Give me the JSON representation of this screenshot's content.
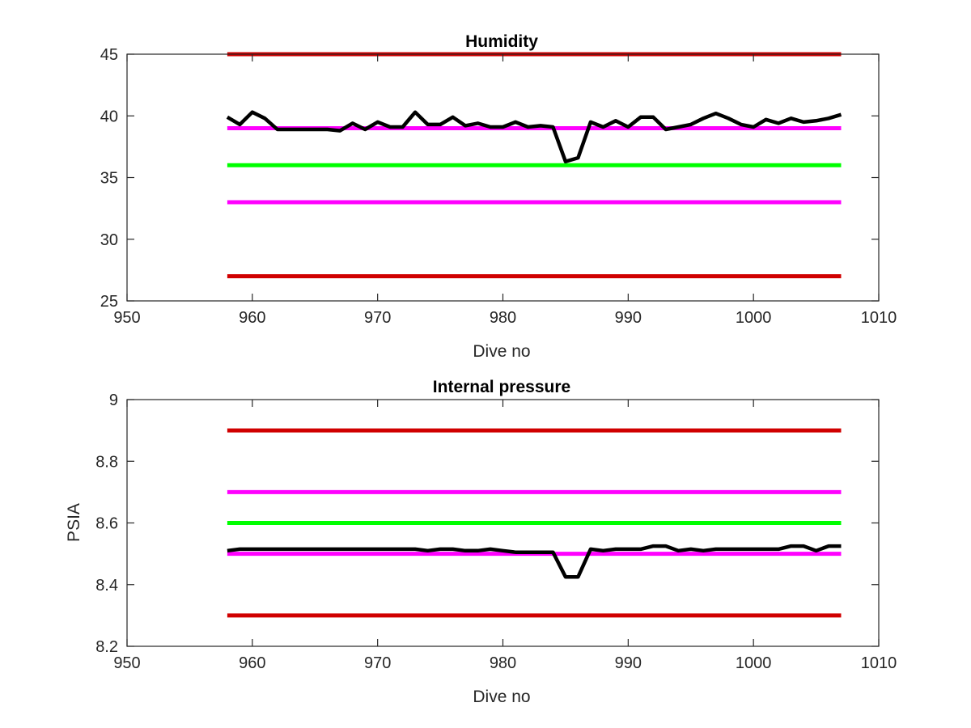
{
  "colors": {
    "limit_red": "#d00000",
    "limit_magenta": "#ff00ff",
    "target_green": "#00ff00",
    "data_black": "#000000",
    "axis": "#262626"
  },
  "chart_data": [
    {
      "type": "line",
      "title": "Humidity",
      "xlabel": "Dive no",
      "ylabel": "",
      "xlim": [
        950,
        1010
      ],
      "ylim": [
        25,
        45
      ],
      "xticks": [
        950,
        960,
        970,
        980,
        990,
        1000,
        1010
      ],
      "yticks": [
        25,
        30,
        35,
        40,
        45
      ],
      "grid": false,
      "series": [
        {
          "color": "#d00000",
          "x": [
            958,
            1007
          ],
          "values": [
            45,
            45
          ]
        },
        {
          "color": "#ff00ff",
          "x": [
            958,
            1007
          ],
          "values": [
            39,
            39
          ]
        },
        {
          "color": "#00ff00",
          "x": [
            958,
            1007
          ],
          "values": [
            36,
            36
          ]
        },
        {
          "color": "#ff00ff",
          "x": [
            958,
            1007
          ],
          "values": [
            33,
            33
          ]
        },
        {
          "color": "#d00000",
          "x": [
            958,
            1007
          ],
          "values": [
            27,
            27
          ]
        },
        {
          "color": "#000000",
          "x": [
            958,
            959,
            960,
            961,
            962,
            963,
            964,
            965,
            966,
            967,
            968,
            969,
            970,
            971,
            972,
            973,
            974,
            975,
            976,
            977,
            978,
            979,
            980,
            981,
            982,
            983,
            984,
            985,
            986,
            987,
            988,
            989,
            990,
            991,
            992,
            993,
            994,
            995,
            996,
            997,
            998,
            999,
            1000,
            1001,
            1002,
            1003,
            1004,
            1005,
            1006,
            1007
          ],
          "values": [
            39.9,
            39.3,
            40.3,
            39.8,
            38.9,
            38.9,
            38.9,
            38.9,
            38.9,
            38.8,
            39.4,
            38.9,
            39.5,
            39.1,
            39.1,
            40.3,
            39.3,
            39.3,
            39.9,
            39.2,
            39.4,
            39.1,
            39.1,
            39.5,
            39.1,
            39.2,
            39.1,
            36.3,
            36.6,
            39.5,
            39.1,
            39.6,
            39.1,
            39.9,
            39.9,
            38.9,
            39.1,
            39.3,
            39.8,
            40.2,
            39.8,
            39.3,
            39.1,
            39.7,
            39.4,
            39.8,
            39.5,
            39.6,
            39.8,
            40.1
          ]
        }
      ]
    },
    {
      "type": "line",
      "title": "Internal pressure",
      "xlabel": "Dive no",
      "ylabel": "PSIA",
      "xlim": [
        950,
        1010
      ],
      "ylim": [
        8.2,
        9
      ],
      "xticks": [
        950,
        960,
        970,
        980,
        990,
        1000,
        1010
      ],
      "yticks": [
        8.2,
        8.4,
        8.6,
        8.8,
        9
      ],
      "grid": false,
      "series": [
        {
          "color": "#d00000",
          "x": [
            958,
            1007
          ],
          "values": [
            8.9,
            8.9
          ]
        },
        {
          "color": "#ff00ff",
          "x": [
            958,
            1007
          ],
          "values": [
            8.7,
            8.7
          ]
        },
        {
          "color": "#00ff00",
          "x": [
            958,
            1007
          ],
          "values": [
            8.6,
            8.6
          ]
        },
        {
          "color": "#ff00ff",
          "x": [
            958,
            1007
          ],
          "values": [
            8.5,
            8.5
          ]
        },
        {
          "color": "#d00000",
          "x": [
            958,
            1007
          ],
          "values": [
            8.3,
            8.3
          ]
        },
        {
          "color": "#000000",
          "x": [
            958,
            959,
            960,
            961,
            962,
            963,
            964,
            965,
            966,
            967,
            968,
            969,
            970,
            971,
            972,
            973,
            974,
            975,
            976,
            977,
            978,
            979,
            980,
            981,
            982,
            983,
            984,
            985,
            986,
            987,
            988,
            989,
            990,
            991,
            992,
            993,
            994,
            995,
            996,
            997,
            998,
            999,
            1000,
            1001,
            1002,
            1003,
            1004,
            1005,
            1006,
            1007
          ],
          "values": [
            8.51,
            8.515,
            8.515,
            8.515,
            8.515,
            8.515,
            8.515,
            8.515,
            8.515,
            8.515,
            8.515,
            8.515,
            8.515,
            8.515,
            8.515,
            8.515,
            8.51,
            8.515,
            8.515,
            8.51,
            8.51,
            8.515,
            8.51,
            8.505,
            8.505,
            8.505,
            8.505,
            8.425,
            8.425,
            8.515,
            8.51,
            8.515,
            8.515,
            8.515,
            8.525,
            8.525,
            8.51,
            8.515,
            8.51,
            8.515,
            8.515,
            8.515,
            8.515,
            8.515,
            8.515,
            8.525,
            8.525,
            8.51,
            8.525,
            8.525
          ]
        }
      ]
    }
  ]
}
